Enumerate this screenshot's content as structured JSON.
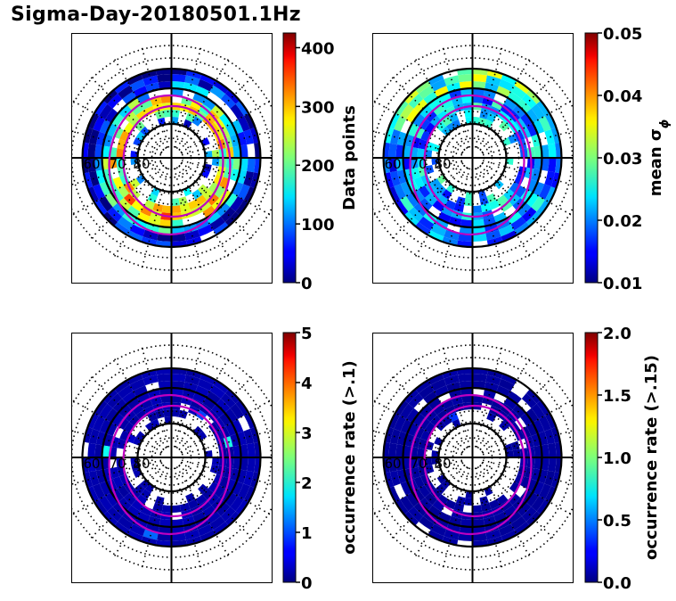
{
  "title": "Sigma-Day-20180501.1Hz",
  "chart_data": [
    {
      "type": "heatmap",
      "projection": "polar",
      "lat_ring_labels": [
        "60",
        "70",
        "80"
      ],
      "colormap": "jet",
      "colorbar": {
        "label": "Data points",
        "ticks": [
          "0",
          "100",
          "200",
          "300",
          "400"
        ],
        "range": [
          0,
          425
        ]
      }
    },
    {
      "type": "heatmap",
      "projection": "polar",
      "lat_ring_labels": [
        "60",
        "70",
        "80"
      ],
      "colormap": "jet",
      "colorbar": {
        "label": "mean σ",
        "label_subscript": "ϕ",
        "ticks": [
          "0.01",
          "0.02",
          "0.03",
          "0.04",
          "0.05"
        ],
        "range": [
          0.01,
          0.05
        ]
      }
    },
    {
      "type": "heatmap",
      "projection": "polar",
      "lat_ring_labels": [
        "60",
        "70",
        "80"
      ],
      "colormap": "jet",
      "colorbar": {
        "label": "occurrence rate (>.1)",
        "ticks": [
          "0",
          "1",
          "2",
          "3",
          "4",
          "5"
        ],
        "range": [
          0,
          5
        ]
      }
    },
    {
      "type": "heatmap",
      "projection": "polar",
      "lat_ring_labels": [
        "60",
        "70",
        "80"
      ],
      "colormap": "jet",
      "colorbar": {
        "label": "occurrence rate (>.15)",
        "ticks": [
          "0.0",
          "0.5",
          "1.0",
          "1.5",
          "2.0"
        ],
        "range": [
          0,
          2
        ]
      }
    }
  ]
}
